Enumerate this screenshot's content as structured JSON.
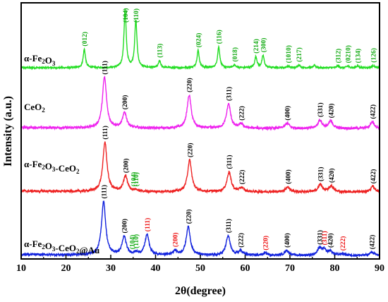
{
  "chart_data": {
    "type": "line",
    "xlabel": "2θ(degree)",
    "ylabel": "Intensity (a.u.)",
    "xlim": [
      10,
      90
    ],
    "x_ticks": [
      10,
      20,
      30,
      40,
      50,
      60,
      70,
      80,
      90
    ],
    "y_ticks_shown": false,
    "grid": false,
    "legend": "none",
    "series": [
      {
        "name": "α-Fe2O3",
        "color": "#22dd22",
        "label_name_parts": [
          [
            "α-Fe",
            "normal"
          ],
          [
            "2",
            "sub"
          ],
          [
            "O",
            "normal"
          ],
          [
            "3",
            "sub"
          ]
        ],
        "peaks": [
          {
            "x": 24.1,
            "h": 0.32
          },
          {
            "x": 33.2,
            "h": 1.0
          },
          {
            "x": 35.6,
            "h": 0.82
          },
          {
            "x": 40.9,
            "h": 0.12
          },
          {
            "x": 49.5,
            "h": 0.3
          },
          {
            "x": 54.1,
            "h": 0.36
          },
          {
            "x": 57.6,
            "h": 0.05
          },
          {
            "x": 62.4,
            "h": 0.19
          },
          {
            "x": 64.0,
            "h": 0.21
          },
          {
            "x": 69.6,
            "h": 0.03
          },
          {
            "x": 72.0,
            "h": 0.05
          },
          {
            "x": 75.5,
            "h": 0.04
          },
          {
            "x": 80.7,
            "h": 0.03
          },
          {
            "x": 82.9,
            "h": 0.03
          },
          {
            "x": 85.1,
            "h": 0.03
          },
          {
            "x": 88.6,
            "h": 0.04
          }
        ],
        "hkl": [
          {
            "x": 24.1,
            "label": "(012)",
            "color": "#11aa11"
          },
          {
            "x": 33.2,
            "label": "(104)",
            "color": "#11aa11"
          },
          {
            "x": 35.6,
            "label": "(110)",
            "color": "#11aa11"
          },
          {
            "x": 40.9,
            "label": "(113)",
            "color": "#11aa11"
          },
          {
            "x": 49.5,
            "label": "(024)",
            "color": "#11aa11"
          },
          {
            "x": 54.1,
            "label": "(116)",
            "color": "#11aa11"
          },
          {
            "x": 57.6,
            "label": "(018)",
            "color": "#11aa11"
          },
          {
            "x": 62.4,
            "label": "(214)",
            "color": "#11aa11"
          },
          {
            "x": 64.0,
            "label": "(300)",
            "color": "#11aa11"
          },
          {
            "x": 69.6,
            "label": "(1010)",
            "color": "#11aa11"
          },
          {
            "x": 72.0,
            "label": "(217)",
            "color": "#11aa11"
          },
          {
            "x": 80.7,
            "label": "(312)",
            "color": "#11aa11"
          },
          {
            "x": 82.9,
            "label": "(0210)",
            "color": "#11aa11"
          },
          {
            "x": 85.1,
            "label": "(134)",
            "color": "#11aa11"
          },
          {
            "x": 88.6,
            "label": "(126)",
            "color": "#11aa11"
          }
        ]
      },
      {
        "name": "CeO2",
        "color": "#ee22ee",
        "label_name_parts": [
          [
            "CeO",
            "normal"
          ],
          [
            "2",
            "sub"
          ]
        ],
        "peaks": [
          {
            "x": 28.6,
            "h": 1.0
          },
          {
            "x": 33.1,
            "h": 0.3
          },
          {
            "x": 47.5,
            "h": 0.65
          },
          {
            "x": 56.3,
            "h": 0.48
          },
          {
            "x": 59.1,
            "h": 0.08
          },
          {
            "x": 69.4,
            "h": 0.1
          },
          {
            "x": 76.7,
            "h": 0.16
          },
          {
            "x": 79.1,
            "h": 0.14
          },
          {
            "x": 88.4,
            "h": 0.13
          }
        ],
        "hkl": [
          {
            "x": 28.6,
            "label": "(111)",
            "color": "#000000"
          },
          {
            "x": 33.1,
            "label": "(200)",
            "color": "#000000"
          },
          {
            "x": 47.5,
            "label": "(220)",
            "color": "#000000"
          },
          {
            "x": 56.3,
            "label": "(311)",
            "color": "#000000"
          },
          {
            "x": 59.1,
            "label": "(222)",
            "color": "#000000"
          },
          {
            "x": 69.4,
            "label": "(400)",
            "color": "#000000"
          },
          {
            "x": 76.7,
            "label": "(331)",
            "color": "#000000"
          },
          {
            "x": 79.1,
            "label": "(420)",
            "color": "#000000"
          },
          {
            "x": 88.4,
            "label": "(422)",
            "color": "#000000"
          }
        ]
      },
      {
        "name": "α-Fe2O3-CeO2",
        "color": "#ee2222",
        "label_name_parts": [
          [
            "α-Fe",
            "normal"
          ],
          [
            "2",
            "sub"
          ],
          [
            "O",
            "normal"
          ],
          [
            "3",
            "sub"
          ],
          [
            "-CeO",
            "normal"
          ],
          [
            "2",
            "sub"
          ]
        ],
        "peaks": [
          {
            "x": 28.7,
            "h": 1.0
          },
          {
            "x": 33.3,
            "h": 0.31
          },
          {
            "x": 35.6,
            "h": 0.03
          },
          {
            "x": 47.6,
            "h": 0.64
          },
          {
            "x": 56.4,
            "h": 0.4
          },
          {
            "x": 59.2,
            "h": 0.08
          },
          {
            "x": 69.5,
            "h": 0.1
          },
          {
            "x": 76.8,
            "h": 0.15
          },
          {
            "x": 79.2,
            "h": 0.12
          },
          {
            "x": 88.5,
            "h": 0.11
          }
        ],
        "hkl": [
          {
            "x": 28.7,
            "label": "(111)",
            "color": "#000000"
          },
          {
            "x": 33.3,
            "label": "(200)",
            "color": "#000000"
          },
          {
            "x": 35.0,
            "label": "(104)",
            "color": "#11aa11"
          },
          {
            "x": 35.6,
            "label": "(110)",
            "color": "#11aa11"
          },
          {
            "x": 47.6,
            "label": "(220)",
            "color": "#000000"
          },
          {
            "x": 56.4,
            "label": "(311)",
            "color": "#000000"
          },
          {
            "x": 59.2,
            "label": "(222)",
            "color": "#000000"
          },
          {
            "x": 69.5,
            "label": "(400)",
            "color": "#000000"
          },
          {
            "x": 76.8,
            "label": "(331)",
            "color": "#000000"
          },
          {
            "x": 79.2,
            "label": "(420)",
            "color": "#000000"
          },
          {
            "x": 88.5,
            "label": "(422)",
            "color": "#000000"
          }
        ]
      },
      {
        "name": "α-Fe2O3-CeO2@Au",
        "color": "#1122dd",
        "label_name_parts": [
          [
            "α-Fe",
            "normal"
          ],
          [
            "2",
            "sub"
          ],
          [
            "O",
            "normal"
          ],
          [
            "3",
            "sub"
          ],
          [
            "-CeO",
            "normal"
          ],
          [
            "2",
            "sub"
          ],
          [
            "@Au",
            "normal"
          ]
        ],
        "peaks": [
          {
            "x": 28.4,
            "h": 1.0
          },
          {
            "x": 33.0,
            "h": 0.34
          },
          {
            "x": 35.6,
            "h": 0.04
          },
          {
            "x": 38.1,
            "h": 0.38
          },
          {
            "x": 44.3,
            "h": 0.08
          },
          {
            "x": 47.3,
            "h": 0.53
          },
          {
            "x": 56.2,
            "h": 0.36
          },
          {
            "x": 59.0,
            "h": 0.08
          },
          {
            "x": 64.5,
            "h": 0.04
          },
          {
            "x": 69.3,
            "h": 0.09
          },
          {
            "x": 76.6,
            "h": 0.12
          },
          {
            "x": 77.6,
            "h": 0.1
          },
          {
            "x": 79.0,
            "h": 0.07
          },
          {
            "x": 81.7,
            "h": 0.03
          },
          {
            "x": 88.3,
            "h": 0.06
          }
        ],
        "hkl": [
          {
            "x": 28.4,
            "label": "(111)",
            "color": "#000000"
          },
          {
            "x": 33.0,
            "label": "(200)",
            "color": "#000000"
          },
          {
            "x": 34.7,
            "label": "(104)",
            "color": "#11aa11"
          },
          {
            "x": 35.6,
            "label": "(110)",
            "color": "#11aa11"
          },
          {
            "x": 38.1,
            "label": "(111)",
            "color": "#ee1111"
          },
          {
            "x": 44.3,
            "label": "(200)",
            "color": "#ee1111"
          },
          {
            "x": 47.3,
            "label": "(220)",
            "color": "#000000"
          },
          {
            "x": 56.2,
            "label": "(311)",
            "color": "#000000"
          },
          {
            "x": 59.0,
            "label": "(222)",
            "color": "#000000"
          },
          {
            "x": 64.5,
            "label": "(220)",
            "color": "#ee1111"
          },
          {
            "x": 69.3,
            "label": "(400)",
            "color": "#000000"
          },
          {
            "x": 76.6,
            "label": "(331)",
            "color": "#000000"
          },
          {
            "x": 77.6,
            "label": "(311)",
            "color": "#ee1111"
          },
          {
            "x": 79.0,
            "label": "(420)",
            "color": "#000000"
          },
          {
            "x": 81.7,
            "label": "(222)",
            "color": "#ee1111"
          },
          {
            "x": 88.3,
            "label": "(422)",
            "color": "#000000"
          }
        ]
      }
    ]
  }
}
